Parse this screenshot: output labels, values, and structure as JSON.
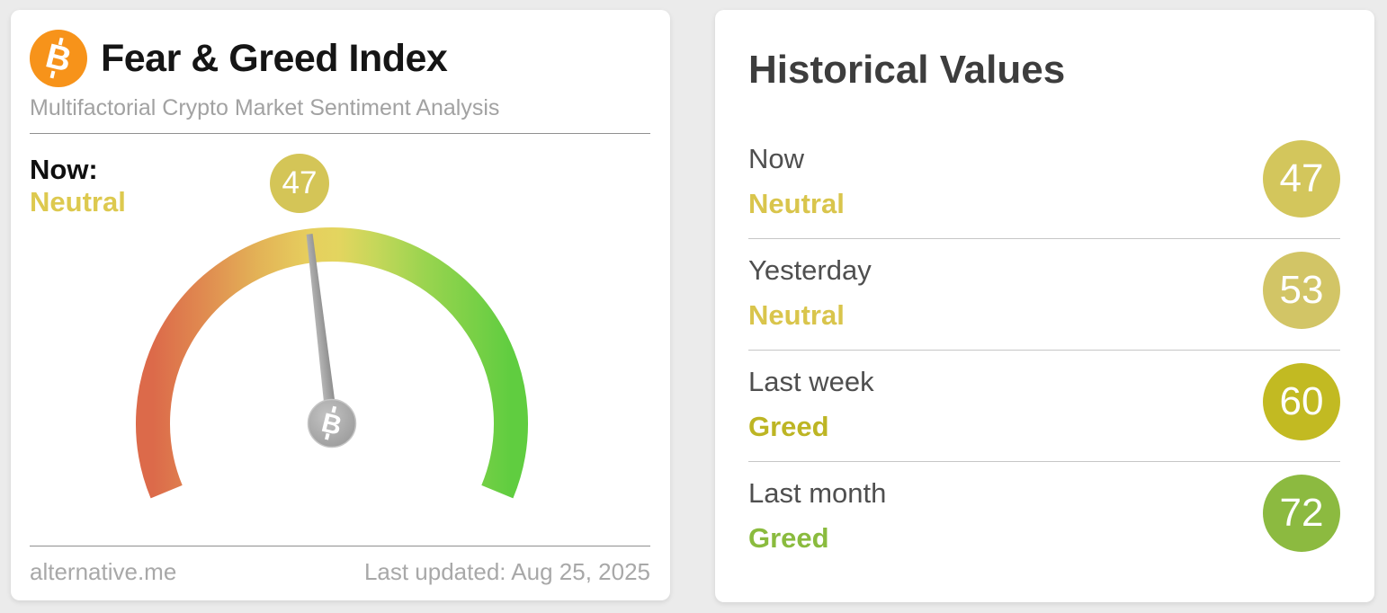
{
  "page": {
    "background": "#ebebeb"
  },
  "brand": {
    "bitcoin_orange": "#f7931a",
    "bitcoin_symbol": "B"
  },
  "gauge_card": {
    "title": "Fear & Greed Index",
    "subtitle": "Multifactorial Crypto Market Sentiment Analysis",
    "now_label": "Now:",
    "now": {
      "classification": "Neutral",
      "value": "47",
      "text_color": "#ddc94f",
      "badge_color": "#d4c557"
    },
    "footer": {
      "source": "alternative.me",
      "last_updated": "Last updated: Aug 25, 2025"
    }
  },
  "historical_card": {
    "title": "Historical Values",
    "rows": [
      {
        "label": "Now",
        "classification": "Neutral",
        "value": "47",
        "text_color": "#d9c54c",
        "badge_color": "#d3c65c"
      },
      {
        "label": "Yesterday",
        "classification": "Neutral",
        "value": "53",
        "text_color": "#d9c54c",
        "badge_color": "#d2c566"
      },
      {
        "label": "Last week",
        "classification": "Greed",
        "value": "60",
        "text_color": "#bdb524",
        "badge_color": "#c2ba22"
      },
      {
        "label": "Last month",
        "classification": "Greed",
        "value": "72",
        "text_color": "#8abb3e",
        "badge_color": "#8cba40"
      }
    ]
  },
  "chart_data": {
    "type": "gauge",
    "title": "Fear & Greed Index",
    "value": 47,
    "min": 0,
    "max": 100,
    "arc_span_degrees": 225,
    "classification": "Neutral",
    "needle_color": "#9d9d9d",
    "scale_colors": [
      "#dc6a4a",
      "#e08a50",
      "#e3b457",
      "#e6cf5e",
      "#e3d55f",
      "#c6d75a",
      "#9ad44f",
      "#60cd40"
    ],
    "historical": [
      {
        "period": "Now",
        "value": 47,
        "classification": "Neutral"
      },
      {
        "period": "Yesterday",
        "value": 53,
        "classification": "Neutral"
      },
      {
        "period": "Last week",
        "value": 60,
        "classification": "Greed"
      },
      {
        "period": "Last month",
        "value": 72,
        "classification": "Greed"
      }
    ]
  }
}
